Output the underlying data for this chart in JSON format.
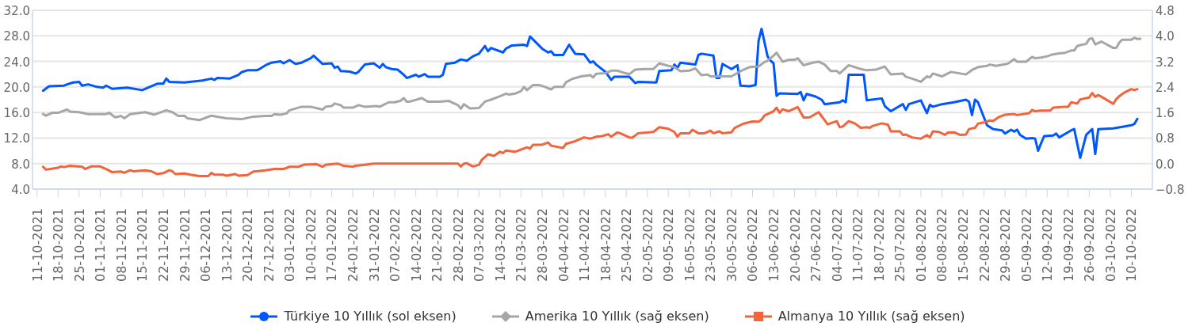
{
  "chart_data": {
    "type": "line",
    "xlim": [
      "2021-10-09T12:00",
      "2022-10-17"
    ],
    "xticks": [
      {
        "value": "2021-10-11",
        "label": "11-10-2021"
      },
      {
        "value": "2021-10-18",
        "label": "18-10-2021"
      },
      {
        "value": "2021-10-25",
        "label": "25-10-2021"
      },
      {
        "value": "2021-11-01",
        "label": "01-11-2021"
      },
      {
        "value": "2021-11-08",
        "label": "08-11-2021"
      },
      {
        "value": "2021-11-15",
        "label": "15-11-2021"
      },
      {
        "value": "2021-11-22",
        "label": "22-11-2021"
      },
      {
        "value": "2021-11-29",
        "label": "29-11-2021"
      },
      {
        "value": "2021-12-06",
        "label": "06-12-2021"
      },
      {
        "value": "2021-12-13",
        "label": "13-12-2021"
      },
      {
        "value": "2021-12-20",
        "label": "20-12-2021"
      },
      {
        "value": "2021-12-27",
        "label": "27-12-2021"
      },
      {
        "value": "2022-01-03",
        "label": "03-01-2022"
      },
      {
        "value": "2022-01-10",
        "label": "10-01-2022"
      },
      {
        "value": "2022-01-17",
        "label": "17-01-2022"
      },
      {
        "value": "2022-01-24",
        "label": "24-01-2022"
      },
      {
        "value": "2022-01-31",
        "label": "31-01-2022"
      },
      {
        "value": "2022-02-07",
        "label": "07-02-2022"
      },
      {
        "value": "2022-02-14",
        "label": "14-02-2022"
      },
      {
        "value": "2022-02-21",
        "label": "21-02-2022"
      },
      {
        "value": "2022-02-28",
        "label": "28-02-2022"
      },
      {
        "value": "2022-03-07",
        "label": "07-03-2022"
      },
      {
        "value": "2022-03-14",
        "label": "14-03-2022"
      },
      {
        "value": "2022-03-21",
        "label": "21-03-2022"
      },
      {
        "value": "2022-03-28",
        "label": "28-03-2022"
      },
      {
        "value": "2022-04-04",
        "label": "04-04-2022"
      },
      {
        "value": "2022-04-11",
        "label": "11-04-2022"
      },
      {
        "value": "2022-04-18",
        "label": "18-04-2022"
      },
      {
        "value": "2022-04-25",
        "label": "25-04-2022"
      },
      {
        "value": "2022-05-02",
        "label": "02-05-2022"
      },
      {
        "value": "2022-05-09",
        "label": "09-05-2022"
      },
      {
        "value": "2022-05-16",
        "label": "16-05-2022"
      },
      {
        "value": "2022-05-23",
        "label": "23-05-2022"
      },
      {
        "value": "2022-05-30",
        "label": "30-05-2022"
      },
      {
        "value": "2022-06-06",
        "label": "06-06-2022"
      },
      {
        "value": "2022-06-13",
        "label": "13-06-2022"
      },
      {
        "value": "2022-06-20",
        "label": "20-06-2022"
      },
      {
        "value": "2022-06-27",
        "label": "27-06-2022"
      },
      {
        "value": "2022-07-04",
        "label": "04-07-2022"
      },
      {
        "value": "2022-07-11",
        "label": "11-07-2022"
      },
      {
        "value": "2022-07-18",
        "label": "18-07-2022"
      },
      {
        "value": "2022-07-25",
        "label": "25-07-2022"
      },
      {
        "value": "2022-08-01",
        "label": "01-08-2022"
      },
      {
        "value": "2022-08-08",
        "label": "08-08-2022"
      },
      {
        "value": "2022-08-15",
        "label": "15-08-2022"
      },
      {
        "value": "2022-08-22",
        "label": "22-08-2022"
      },
      {
        "value": "2022-08-29",
        "label": "29-08-2022"
      },
      {
        "value": "2022-09-05",
        "label": "05-09-2022"
      },
      {
        "value": "2022-09-12",
        "label": "12-09-2022"
      },
      {
        "value": "2022-09-19",
        "label": "19-09-2022"
      },
      {
        "value": "2022-09-26",
        "label": "26-09-2022"
      },
      {
        "value": "2022-10-03",
        "label": "03-10-2022"
      },
      {
        "value": "2022-10-10",
        "label": "10-10-2022"
      }
    ],
    "ylim": [
      4,
      32
    ],
    "yticks": [
      {
        "value": 4,
        "label": "4.0"
      },
      {
        "value": 8,
        "label": "8.0"
      },
      {
        "value": 12,
        "label": "12.0"
      },
      {
        "value": 16,
        "label": "16.0"
      },
      {
        "value": 20,
        "label": "20.0"
      },
      {
        "value": 24,
        "label": "24.0"
      },
      {
        "value": 28,
        "label": "28.0"
      },
      {
        "value": 32,
        "label": "32.0"
      }
    ],
    "y2lim": [
      -0.8,
      4.8
    ],
    "y2ticks": [
      {
        "value": -0.8,
        "label": "−0.8"
      },
      {
        "value": 0,
        "label": "0.0"
      },
      0.8,
      1.6,
      2.4,
      3.2,
      {
        "value": 4,
        "label": "4.0"
      },
      4.8
    ],
    "grid": "y",
    "legend": "bottom",
    "series": [
      {
        "name": "Türkiye 10 Yıllık (sol eksen)",
        "color": "#0057ff",
        "x": [
          "2021-10-13",
          "2021-10-15",
          "2021-10-20",
          "2021-10-21",
          "2021-10-23",
          "2021-10-25",
          "2021-10-26",
          "2021-10-28",
          "2021-10-31",
          "2021-11-02",
          "2021-11-03",
          "2021-11-05",
          "2021-11-10",
          "2021-11-15",
          "2021-11-17",
          "2021-11-20",
          "2021-11-22",
          "2021-11-23",
          "2021-11-24",
          "2021-11-29",
          "2021-12-05",
          "2021-12-08",
          "2021-12-09",
          "2021-12-10",
          "2021-12-14",
          "2021-12-17",
          "2021-12-18",
          "2021-12-20",
          "2021-12-23",
          "2021-12-24",
          "2021-12-26",
          "2021-12-28",
          "2021-12-31",
          "2022-01-01",
          "2022-01-03",
          "2022-01-05",
          "2022-01-07",
          "2022-01-10",
          "2022-01-11",
          "2022-01-14",
          "2022-01-17",
          "2022-01-18",
          "2022-01-19",
          "2022-01-20",
          "2022-01-23",
          "2022-01-25",
          "2022-01-26",
          "2022-01-28",
          "2022-01-31",
          "2022-02-02",
          "2022-02-03",
          "2022-02-04",
          "2022-02-06",
          "2022-02-08",
          "2022-02-10",
          "2022-02-11",
          "2022-02-14",
          "2022-02-15",
          "2022-02-17",
          "2022-02-18",
          "2022-02-22",
          "2022-02-23",
          "2022-02-24",
          "2022-02-27",
          "2022-03-01",
          "2022-03-03",
          "2022-03-05",
          "2022-03-07",
          "2022-03-09",
          "2022-03-10",
          "2022-03-11",
          "2022-03-15",
          "2022-03-16",
          "2022-03-18",
          "2022-03-22",
          "2022-03-23",
          "2022-03-24",
          "2022-03-28",
          "2022-03-30",
          "2022-03-31",
          "2022-04-01",
          "2022-04-04",
          "2022-04-05",
          "2022-04-06",
          "2022-04-08",
          "2022-04-11",
          "2022-04-13",
          "2022-04-14",
          "2022-04-15",
          "2022-04-18",
          "2022-04-20",
          "2022-04-21",
          "2022-04-26",
          "2022-04-28",
          "2022-04-29",
          "2022-05-05",
          "2022-05-06",
          "2022-05-10",
          "2022-05-11",
          "2022-05-12",
          "2022-05-13",
          "2022-05-18",
          "2022-05-19",
          "2022-05-20",
          "2022-05-24",
          "2022-05-25",
          "2022-05-26",
          "2022-05-27",
          "2022-05-30",
          "2022-06-01",
          "2022-06-02",
          "2022-06-05",
          "2022-06-07",
          "2022-06-08",
          "2022-06-09",
          "2022-06-11",
          "2022-06-12",
          "2022-06-13",
          "2022-06-14",
          "2022-06-15",
          "2022-06-21",
          "2022-06-22",
          "2022-06-23",
          "2022-06-24",
          "2022-06-27",
          "2022-06-29",
          "2022-06-30",
          "2022-07-05",
          "2022-07-06",
          "2022-07-07",
          "2022-07-08",
          "2022-07-13",
          "2022-07-14",
          "2022-07-19",
          "2022-07-20",
          "2022-07-22",
          "2022-07-26",
          "2022-07-27",
          "2022-07-28",
          "2022-08-01",
          "2022-08-03",
          "2022-08-04",
          "2022-08-05",
          "2022-08-08",
          "2022-08-12",
          "2022-08-16",
          "2022-08-17",
          "2022-08-18",
          "2022-08-19",
          "2022-08-20",
          "2022-08-23",
          "2022-08-25",
          "2022-08-28",
          "2022-08-29",
          "2022-08-31",
          "2022-09-01",
          "2022-09-02",
          "2022-09-03",
          "2022-09-05",
          "2022-09-07",
          "2022-09-08",
          "2022-09-09",
          "2022-09-10",
          "2022-09-11",
          "2022-09-14",
          "2022-09-15",
          "2022-09-16",
          "2022-09-20",
          "2022-09-21",
          "2022-09-23",
          "2022-09-25",
          "2022-09-27",
          "2022-09-28",
          "2022-09-29",
          "2022-10-04",
          "2022-10-10",
          "2022-10-11",
          "2022-10-12"
        ],
        "values": [
          19.4,
          20.1,
          20.2,
          20.4,
          20.7,
          20.8,
          20.2,
          20.4,
          20.0,
          19.9,
          20.2,
          19.7,
          19.9,
          19.5,
          19.9,
          20.5,
          20.5,
          21.3,
          20.8,
          20.7,
          21.0,
          21.3,
          21.1,
          21.4,
          21.3,
          21.9,
          22.3,
          22.6,
          22.6,
          22.8,
          23.4,
          23.8,
          24.0,
          23.7,
          24.2,
          23.6,
          23.8,
          24.5,
          24.9,
          23.6,
          23.7,
          23.0,
          23.2,
          22.5,
          22.4,
          22.1,
          22.4,
          23.5,
          23.7,
          23.0,
          23.6,
          23.1,
          22.8,
          22.7,
          21.9,
          21.4,
          21.9,
          21.6,
          22.0,
          21.6,
          21.6,
          21.9,
          23.6,
          23.8,
          24.3,
          24.1,
          24.8,
          25.2,
          26.4,
          25.6,
          26.1,
          25.4,
          26.0,
          26.5,
          26.6,
          26.4,
          27.9,
          26.0,
          25.4,
          25.6,
          25.0,
          25.0,
          25.8,
          26.6,
          25.2,
          25.1,
          23.8,
          24.0,
          23.5,
          22.4,
          21.1,
          21.6,
          21.6,
          20.6,
          20.8,
          20.7,
          22.5,
          22.6,
          23.5,
          23.0,
          23.8,
          23.5,
          25.0,
          25.2,
          24.9,
          21.4,
          21.4,
          23.6,
          22.8,
          23.4,
          20.2,
          20.1,
          20.3,
          27.2,
          29.1,
          24.8,
          24.1,
          23.7,
          18.6,
          19.0,
          18.9,
          19.2,
          17.9,
          18.9,
          18.5,
          18.0,
          17.3,
          17.6,
          17.9,
          17.6,
          21.9,
          21.9,
          17.9,
          18.2,
          17.0,
          16.2,
          17.3,
          16.4,
          17.3,
          17.9,
          15.9,
          17.2,
          16.9,
          17.3,
          17.6,
          18.0,
          17.7,
          15.6,
          18.0,
          17.6,
          14.0,
          13.4,
          13.2,
          12.7,
          13.3,
          13.0,
          13.3,
          12.5,
          11.9,
          12.0,
          11.9,
          10.0,
          11.2,
          12.3,
          12.4,
          12.7,
          12.1,
          13.2,
          13.4,
          8.9,
          12.5,
          13.4,
          9.5,
          13.4,
          13.5,
          14.0,
          14.2,
          15.0
        ]
      },
      {
        "name": "Amerika 10 Yıllık (sağ eksen)",
        "color": "#a6a6a6",
        "axis": "y2",
        "x": [
          "2021-10-13",
          "2021-10-14",
          "2021-10-16",
          "2021-10-18",
          "2021-10-21",
          "2021-10-22",
          "2021-10-25",
          "2021-10-28",
          "2021-11-03",
          "2021-11-04",
          "2021-11-06",
          "2021-11-08",
          "2021-11-09",
          "2021-11-11",
          "2021-11-16",
          "2021-11-19",
          "2021-11-23",
          "2021-11-25",
          "2021-11-27",
          "2021-11-29",
          "2021-11-30",
          "2021-12-04",
          "2021-12-08",
          "2021-12-13",
          "2021-12-18",
          "2021-12-22",
          "2021-12-26",
          "2021-12-28",
          "2021-12-29",
          "2021-12-31",
          "2022-01-02",
          "2022-01-03",
          "2022-01-07",
          "2022-01-10",
          "2022-01-14",
          "2022-01-15",
          "2022-01-17",
          "2022-01-18",
          "2022-01-20",
          "2022-01-21",
          "2022-01-24",
          "2022-01-26",
          "2022-01-28",
          "2022-02-01",
          "2022-02-02",
          "2022-02-05",
          "2022-02-07",
          "2022-02-09",
          "2022-02-10",
          "2022-02-11",
          "2022-02-12",
          "2022-02-16",
          "2022-02-18",
          "2022-02-22",
          "2022-02-25",
          "2022-02-28",
          "2022-03-01",
          "2022-03-02",
          "2022-03-04",
          "2022-03-07",
          "2022-03-09",
          "2022-03-11",
          "2022-03-14",
          "2022-03-16",
          "2022-03-17",
          "2022-03-19",
          "2022-03-21",
          "2022-03-22",
          "2022-03-23",
          "2022-03-25",
          "2022-03-27",
          "2022-03-29",
          "2022-03-31",
          "2022-04-01",
          "2022-04-04",
          "2022-04-05",
          "2022-04-07",
          "2022-04-10",
          "2022-04-13",
          "2022-04-14",
          "2022-04-15",
          "2022-04-18",
          "2022-04-20",
          "2022-04-22",
          "2022-04-24",
          "2022-04-26",
          "2022-04-28",
          "2022-05-01",
          "2022-05-04",
          "2022-05-06",
          "2022-05-09",
          "2022-05-11",
          "2022-05-13",
          "2022-05-16",
          "2022-05-18",
          "2022-05-20",
          "2022-05-22",
          "2022-05-23",
          "2022-05-30",
          "2022-06-03",
          "2022-06-05",
          "2022-06-08",
          "2022-06-10",
          "2022-06-11",
          "2022-06-13",
          "2022-06-14",
          "2022-06-16",
          "2022-06-18",
          "2022-06-20",
          "2022-06-21",
          "2022-06-23",
          "2022-06-26",
          "2022-06-28",
          "2022-06-30",
          "2022-07-02",
          "2022-07-04",
          "2022-07-05",
          "2022-07-08",
          "2022-07-12",
          "2022-07-14",
          "2022-07-17",
          "2022-07-20",
          "2022-07-22",
          "2022-07-26",
          "2022-07-27",
          "2022-07-30",
          "2022-08-01",
          "2022-08-03",
          "2022-08-04",
          "2022-08-05",
          "2022-08-08",
          "2022-08-11",
          "2022-08-16",
          "2022-08-18",
          "2022-08-20",
          "2022-08-23",
          "2022-08-24",
          "2022-08-26",
          "2022-08-27",
          "2022-08-30",
          "2022-09-01",
          "2022-09-02",
          "2022-09-05",
          "2022-09-07",
          "2022-09-08",
          "2022-09-10",
          "2022-09-12",
          "2022-09-14",
          "2022-09-16",
          "2022-09-18",
          "2022-09-20",
          "2022-09-21",
          "2022-09-22",
          "2022-09-23",
          "2022-09-25",
          "2022-09-26",
          "2022-09-27",
          "2022-09-28",
          "2022-09-30",
          "2022-10-04",
          "2022-10-05",
          "2022-10-06",
          "2022-10-07",
          "2022-10-10",
          "2022-10-11",
          "2022-10-12",
          "2022-10-13"
        ],
        "values": [
          1.55,
          1.5,
          1.59,
          1.59,
          1.69,
          1.63,
          1.61,
          1.55,
          1.55,
          1.59,
          1.45,
          1.49,
          1.42,
          1.55,
          1.61,
          1.53,
          1.67,
          1.61,
          1.49,
          1.5,
          1.42,
          1.36,
          1.5,
          1.42,
          1.39,
          1.47,
          1.49,
          1.49,
          1.55,
          1.53,
          1.57,
          1.67,
          1.78,
          1.78,
          1.69,
          1.78,
          1.8,
          1.88,
          1.83,
          1.75,
          1.75,
          1.83,
          1.78,
          1.8,
          1.78,
          1.92,
          1.92,
          1.97,
          2.05,
          1.94,
          1.94,
          2.05,
          1.94,
          1.94,
          1.96,
          1.83,
          1.72,
          1.86,
          1.73,
          1.74,
          1.94,
          2.0,
          2.11,
          2.19,
          2.16,
          2.19,
          2.27,
          2.4,
          2.3,
          2.46,
          2.46,
          2.4,
          2.32,
          2.4,
          2.4,
          2.55,
          2.65,
          2.73,
          2.77,
          2.7,
          2.81,
          2.83,
          2.91,
          2.91,
          2.85,
          2.8,
          2.94,
          2.96,
          2.96,
          3.14,
          3.06,
          3.02,
          2.89,
          2.91,
          2.98,
          2.77,
          2.79,
          2.73,
          2.73,
          2.94,
          3.02,
          3.04,
          3.18,
          3.22,
          3.38,
          3.47,
          3.19,
          3.25,
          3.25,
          3.3,
          3.08,
          3.16,
          3.19,
          3.1,
          2.9,
          2.9,
          2.82,
          3.08,
          2.96,
          2.92,
          2.94,
          3.04,
          2.79,
          2.82,
          2.72,
          2.63,
          2.56,
          2.73,
          2.7,
          2.82,
          2.73,
          2.87,
          2.79,
          2.93,
          3.02,
          3.06,
          3.1,
          3.06,
          3.08,
          3.13,
          3.27,
          3.19,
          3.19,
          3.34,
          3.3,
          3.32,
          3.36,
          3.42,
          3.45,
          3.47,
          3.54,
          3.54,
          3.68,
          3.71,
          3.75,
          3.9,
          3.92,
          3.73,
          3.82,
          3.62,
          3.62,
          3.79,
          3.88,
          3.88,
          3.94,
          3.9,
          3.91
        ]
      },
      {
        "name": "Almanya 10 Yıllık (sağ eksen)",
        "color": "#f2643c",
        "axis": "y2",
        "x": [
          "2021-10-13",
          "2021-10-14",
          "2021-10-18",
          "2021-10-19",
          "2021-10-20",
          "2021-10-22",
          "2021-10-26",
          "2021-10-27",
          "2021-10-29",
          "2021-11-01",
          "2021-11-03",
          "2021-11-05",
          "2021-11-08",
          "2021-11-09",
          "2021-11-11",
          "2021-11-12",
          "2021-11-16",
          "2021-11-18",
          "2021-11-20",
          "2021-11-22",
          "2021-11-24",
          "2021-11-25",
          "2021-11-26",
          "2021-11-29",
          "2021-12-01",
          "2021-12-04",
          "2021-12-07",
          "2021-12-08",
          "2021-12-09",
          "2021-12-12",
          "2021-12-13",
          "2021-12-16",
          "2021-12-17",
          "2021-12-20",
          "2021-12-22",
          "2021-12-23",
          "2021-12-26",
          "2021-12-29",
          "2022-01-01",
          "2022-01-03",
          "2022-01-06",
          "2022-01-08",
          "2022-01-12",
          "2022-01-14",
          "2022-01-15",
          "2022-01-19",
          "2022-01-21",
          "2022-01-24",
          "2022-01-25",
          "2022-01-28",
          "2022-01-31",
          "2022-02-28",
          "2022-03-01",
          "2022-03-02",
          "2022-03-03",
          "2022-03-05",
          "2022-03-07",
          "2022-03-08",
          "2022-03-10",
          "2022-03-12",
          "2022-03-14",
          "2022-03-15",
          "2022-03-16",
          "2022-03-19",
          "2022-03-23",
          "2022-03-24",
          "2022-03-25",
          "2022-03-28",
          "2022-03-30",
          "2022-03-31",
          "2022-04-04",
          "2022-04-05",
          "2022-04-08",
          "2022-04-11",
          "2022-04-13",
          "2022-04-15",
          "2022-04-17",
          "2022-04-19",
          "2022-04-20",
          "2022-04-22",
          "2022-04-23",
          "2022-04-26",
          "2022-04-27",
          "2022-04-29",
          "2022-05-04",
          "2022-05-06",
          "2022-05-09",
          "2022-05-11",
          "2022-05-12",
          "2022-05-13",
          "2022-05-16",
          "2022-05-17",
          "2022-05-19",
          "2022-05-21",
          "2022-05-23",
          "2022-05-24",
          "2022-05-26",
          "2022-05-27",
          "2022-05-30",
          "2022-05-31",
          "2022-06-03",
          "2022-06-06",
          "2022-06-08",
          "2022-06-09",
          "2022-06-10",
          "2022-06-13",
          "2022-06-14",
          "2022-06-15",
          "2022-06-16",
          "2022-06-18",
          "2022-06-21",
          "2022-06-23",
          "2022-06-25",
          "2022-06-28",
          "2022-07-01",
          "2022-07-04",
          "2022-07-05",
          "2022-07-06",
          "2022-07-08",
          "2022-07-10",
          "2022-07-12",
          "2022-07-14",
          "2022-07-15",
          "2022-07-16",
          "2022-07-19",
          "2022-07-21",
          "2022-07-22",
          "2022-07-25",
          "2022-07-26",
          "2022-07-27",
          "2022-07-29",
          "2022-08-01",
          "2022-08-03",
          "2022-08-04",
          "2022-08-05",
          "2022-08-07",
          "2022-08-09",
          "2022-08-10",
          "2022-08-12",
          "2022-08-14",
          "2022-08-16",
          "2022-08-17",
          "2022-08-19",
          "2022-08-20",
          "2022-08-22",
          "2022-08-24",
          "2022-08-25",
          "2022-08-27",
          "2022-08-29",
          "2022-09-01",
          "2022-09-02",
          "2022-09-06",
          "2022-09-07",
          "2022-09-08",
          "2022-09-10",
          "2022-09-13",
          "2022-09-14",
          "2022-09-18",
          "2022-09-19",
          "2022-09-20",
          "2022-09-22",
          "2022-09-23",
          "2022-09-26",
          "2022-09-27",
          "2022-09-28",
          "2022-09-29",
          "2022-10-01",
          "2022-10-04",
          "2022-10-05",
          "2022-10-06",
          "2022-10-08",
          "2022-10-10",
          "2022-10-11",
          "2022-10-12"
        ],
        "values": [
          -0.1,
          -0.19,
          -0.13,
          -0.09,
          -0.11,
          -0.07,
          -0.1,
          -0.17,
          -0.09,
          -0.09,
          -0.17,
          -0.27,
          -0.25,
          -0.29,
          -0.21,
          -0.24,
          -0.21,
          -0.24,
          -0.33,
          -0.3,
          -0.21,
          -0.24,
          -0.33,
          -0.31,
          -0.35,
          -0.39,
          -0.39,
          -0.29,
          -0.35,
          -0.35,
          -0.38,
          -0.33,
          -0.38,
          -0.36,
          -0.25,
          -0.24,
          -0.21,
          -0.17,
          -0.17,
          -0.1,
          -0.1,
          -0.03,
          -0.02,
          -0.1,
          -0.04,
          0,
          -0.07,
          -0.1,
          -0.07,
          -0.04,
          0,
          0,
          -0.09,
          0,
          0.01,
          -0.09,
          -0.04,
          0.12,
          0.29,
          0.24,
          0.37,
          0.33,
          0.41,
          0.37,
          0.51,
          0.47,
          0.59,
          0.59,
          0.66,
          0.56,
          0.49,
          0.62,
          0.7,
          0.82,
          0.78,
          0.84,
          0.86,
          0.92,
          0.84,
          0.97,
          0.95,
          0.82,
          0.81,
          0.95,
          0.99,
          1.14,
          1.09,
          0.99,
          0.84,
          0.95,
          0.95,
          1.06,
          0.95,
          0.95,
          1.03,
          0.95,
          1.01,
          0.95,
          0.98,
          1.11,
          1.25,
          1.32,
          1.31,
          1.38,
          1.51,
          1.64,
          1.75,
          1.59,
          1.7,
          1.64,
          1.77,
          1.44,
          1.45,
          1.61,
          1.23,
          1.33,
          1.14,
          1.16,
          1.33,
          1.26,
          1.12,
          1.14,
          1.12,
          1.18,
          1.26,
          1.22,
          1.01,
          1.01,
          0.9,
          0.91,
          0.82,
          0.78,
          0.89,
          0.82,
          1.01,
          0.99,
          0.9,
          0.97,
          0.98,
          0.9,
          0.91,
          1.08,
          1.12,
          1.25,
          1.29,
          1.35,
          1.33,
          1.46,
          1.53,
          1.55,
          1.52,
          1.58,
          1.68,
          1.64,
          1.66,
          1.66,
          1.75,
          1.78,
          1.78,
          1.92,
          1.88,
          2.01,
          2.07,
          2.21,
          2.09,
          2.15,
          2.04,
          1.87,
          2.02,
          2.11,
          2.24,
          2.33,
          2.3,
          2.33
        ]
      }
    ]
  }
}
